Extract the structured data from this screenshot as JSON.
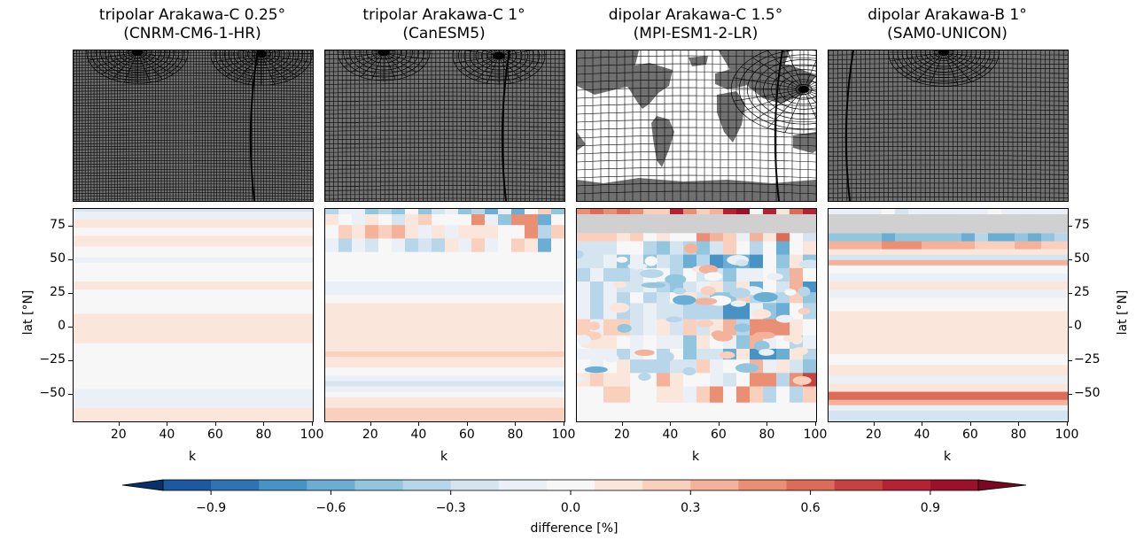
{
  "panels": [
    {
      "title_line1": "tripolar Arakawa-C 0.25°",
      "title_line2": "(CNRM-CM6-1-HR)",
      "grid": "tripolar-fine"
    },
    {
      "title_line1": "tripolar Arakawa-C 1°",
      "title_line2": "(CanESM5)",
      "grid": "tripolar"
    },
    {
      "title_line1": "dipolar Arakawa-C 1.5°",
      "title_line2": "(MPI-ESM1-2-LR)",
      "grid": "dipolar"
    },
    {
      "title_line1": "dipolar Arakawa-B 1°",
      "title_line2": "(SAM0-UNICON)",
      "grid": "dipolar-b"
    }
  ],
  "colors": {
    "land": "#707070",
    "missing": "#d0d0d0",
    "scale": [
      "#08306b",
      "#1b5aa0",
      "#2e74b5",
      "#4793c6",
      "#6aadd5",
      "#92c5de",
      "#b7d6ea",
      "#d5e5f0",
      "#eaf0f5",
      "#f7f7f7",
      "#fbe6dc",
      "#fad0bc",
      "#f4b29a",
      "#ea8f73",
      "#dc6c58",
      "#c84141",
      "#b52233",
      "#9c1129",
      "#7b0720"
    ]
  },
  "chart_data": {
    "type": "heatmap",
    "xlabel": "k",
    "ylabel": "lat [°N]",
    "xlim": [
      1,
      100
    ],
    "ylim": [
      -70,
      88
    ],
    "xticks": [
      20,
      40,
      60,
      80,
      100
    ],
    "yticks": [
      75,
      50,
      25,
      0,
      -25,
      -50
    ],
    "ytick_labels": [
      "75",
      "50",
      "25",
      "0",
      "−25",
      "−50"
    ],
    "colorbar": {
      "label": "difference [%]",
      "range": [
        -1.05,
        1.05
      ],
      "ticks": [
        -0.9,
        -0.6,
        -0.3,
        0.0,
        0.3,
        0.6,
        0.9
      ],
      "tick_labels": [
        "−0.9",
        "−0.6",
        "−0.3",
        "0.0",
        "0.3",
        "0.6",
        "0.9"
      ],
      "extend": "both"
    },
    "panels": [
      {
        "name": "CNRM-CM6-1-HR",
        "bands": [
          [
            86,
            88,
            -0.18
          ],
          [
            80,
            86,
            -0.08
          ],
          [
            74,
            80,
            0.12
          ],
          [
            68,
            74,
            0.03
          ],
          [
            60,
            68,
            0.1
          ],
          [
            52,
            60,
            0.02
          ],
          [
            48,
            52,
            -0.06
          ],
          [
            40,
            48,
            0.05
          ],
          [
            34,
            40,
            -0.03
          ],
          [
            28,
            34,
            0.06
          ],
          [
            18,
            28,
            -0.02
          ],
          [
            10,
            18,
            0.04
          ],
          [
            -12,
            10,
            0.11
          ],
          [
            -18,
            -12,
            0.05
          ],
          [
            -46,
            -18,
            -0.05
          ],
          [
            -52,
            -46,
            -0.13
          ],
          [
            -60,
            -52,
            -0.06
          ],
          [
            -70,
            -60,
            0.06
          ]
        ],
        "missing": [],
        "noise": 0
      },
      {
        "name": "CanESM5",
        "bands": [
          [
            84,
            88,
            -0.2
          ],
          [
            76,
            84,
            0.05
          ],
          [
            66,
            76,
            0.14
          ],
          [
            56,
            66,
            -0.12
          ],
          [
            44,
            56,
            0.02
          ],
          [
            34,
            44,
            -0.03
          ],
          [
            24,
            34,
            -0.07
          ],
          [
            18,
            24,
            0.03
          ],
          [
            -10,
            18,
            0.09
          ],
          [
            -18,
            -10,
            0.14
          ],
          [
            -22,
            -18,
            0.24
          ],
          [
            -30,
            -22,
            0.14
          ],
          [
            -36,
            -30,
            0.05
          ],
          [
            -40,
            -36,
            -0.12
          ],
          [
            -44,
            -40,
            -0.22
          ],
          [
            -48,
            -44,
            -0.12
          ],
          [
            -52,
            -48,
            0.03
          ],
          [
            -60,
            -52,
            0.14
          ],
          [
            -70,
            -60,
            0.2
          ]
        ],
        "missing": [],
        "noise": 0.5,
        "noise_lat": 60
      },
      {
        "name": "MPI-ESM1-2-LR",
        "bands": [
          [
            84,
            88,
            0.45
          ],
          [
            72,
            84,
            0.0
          ],
          [
            64,
            72,
            0.1
          ],
          [
            54,
            64,
            -0.2
          ],
          [
            44,
            54,
            -0.25
          ],
          [
            34,
            44,
            -0.2
          ],
          [
            26,
            34,
            -0.15
          ],
          [
            18,
            26,
            -0.2
          ],
          [
            6,
            18,
            -0.25
          ],
          [
            -6,
            6,
            0.05
          ],
          [
            -16,
            -6,
            -0.08
          ],
          [
            -24,
            -16,
            -0.22
          ],
          [
            -34,
            -24,
            -0.1
          ],
          [
            -44,
            -34,
            0.12
          ],
          [
            -56,
            -44,
            0.06
          ],
          [
            -70,
            -56,
            0.0
          ]
        ],
        "missing": [
          [
            70,
            84
          ]
        ],
        "noise": 0.45,
        "noise_lat": -50
      },
      {
        "name": "SAM0-UNICON",
        "bands": [
          [
            84,
            88,
            -0.1
          ],
          [
            70,
            84,
            0.0
          ],
          [
            64,
            70,
            -0.45
          ],
          [
            58,
            64,
            0.35
          ],
          [
            54,
            58,
            0.1
          ],
          [
            50,
            54,
            -0.2
          ],
          [
            46,
            50,
            0.3
          ],
          [
            40,
            46,
            0.04
          ],
          [
            34,
            40,
            -0.08
          ],
          [
            28,
            34,
            0.1
          ],
          [
            22,
            28,
            -0.06
          ],
          [
            12,
            22,
            0.05
          ],
          [
            -20,
            12,
            0.1
          ],
          [
            -28,
            -20,
            -0.05
          ],
          [
            -36,
            -28,
            0.12
          ],
          [
            -42,
            -36,
            -0.12
          ],
          [
            -48,
            -42,
            0.08
          ],
          [
            -54,
            -48,
            0.5
          ],
          [
            -58,
            -54,
            0.28
          ],
          [
            -62,
            -58,
            -0.06
          ],
          [
            -70,
            -62,
            -0.22
          ]
        ],
        "missing": [
          [
            70,
            84
          ]
        ],
        "noise": 0.12,
        "noise_lat": 60
      }
    ]
  }
}
